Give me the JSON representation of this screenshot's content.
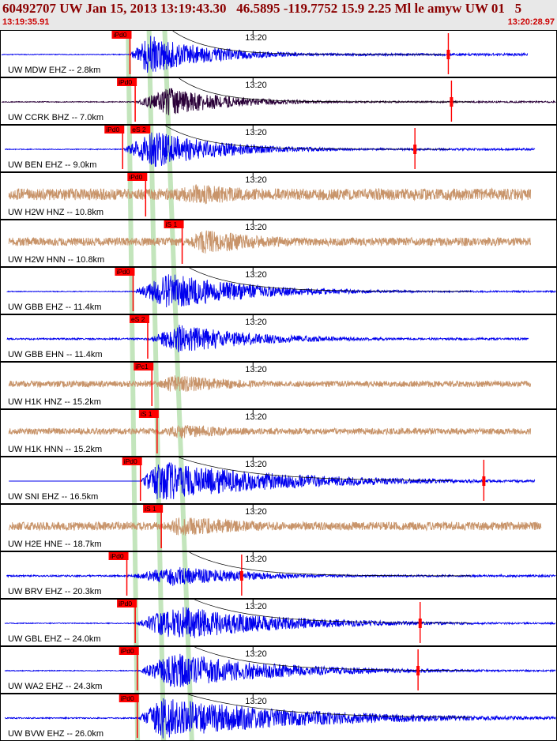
{
  "header": {
    "title": "60492707 UW Jan 15, 2013 13:19:43.30   46.5895 -119.7752 15.9 2.25 Ml le amyw UW 01   5",
    "start_time": "13:19:35.91",
    "end_time": "13:20:28.97"
  },
  "colors": {
    "velocity": "#0000ee",
    "strong_motion": "#c8946a",
    "broadband": "#2a0038",
    "pick": "#ff0000",
    "moveout": "#b8e0b0"
  },
  "chart_data": {
    "type": "line",
    "title": "60492707 UW Jan 15, 2013 13:19:43.30   46.5895 -119.7752 15.9 2.25 Ml le amyw UW 01   5",
    "x_range": [
      "13:19:35.91",
      "13:20:28.97"
    ],
    "time_mark": "13:20",
    "traces": [
      {
        "label": "UW MDW EHZ -- 2.8km",
        "type": "velocity",
        "pick_label": "iPd0",
        "pick_s": 12.3,
        "onset_s": 12.3,
        "peak_s": 14.0,
        "decay": 6,
        "amp": 1.0,
        "pre_amp": 0.02,
        "noise": 0.06,
        "start_s": 0,
        "end_s": 50.4,
        "spike_s": 42.8,
        "envelope": true,
        "env_pad_s": 2.4
      },
      {
        "label": "UW CCRK BHZ -- 7.0km",
        "type": "broadband",
        "pick_label": "iPd0",
        "pick_s": 12.8,
        "onset_s": 12.8,
        "peak_s": 16.0,
        "decay": 6,
        "amp": 0.7,
        "pre_amp": 0.02,
        "noise": 0.04,
        "start_s": 0,
        "end_s": 53.1,
        "spike_s": 43.1,
        "envelope": true,
        "env_pad_s": 1.0
      },
      {
        "label": "UW BEN EHZ -- 9.0km",
        "type": "velocity",
        "pick_label": "iPd0",
        "pick_s": 11.6,
        "onset_s": 11.6,
        "peak_s": 14.5,
        "decay": 7,
        "amp": 0.9,
        "pre_amp": 0.02,
        "noise": 0.05,
        "start_s": 0.3,
        "end_s": 51.1,
        "spike_s": 39.6,
        "envelope": true,
        "env_pad_s": 1.2,
        "extra_pick": "eS 2"
      },
      {
        "label": "UW H2W HNZ -- 10.8km",
        "type": "strong_motion",
        "pick_label": "iPd0",
        "pick_s": 13.8,
        "onset_s": 13.8,
        "peak_s": 19.0,
        "decay": 10,
        "amp": 0.5,
        "pre_amp": 0.28,
        "noise": 0.28,
        "start_s": 0.7,
        "end_s": 50.7,
        "spike_s": null,
        "envelope": false
      },
      {
        "label": "UW H2W HNN -- 10.8km",
        "type": "strong_motion",
        "pick_label": "iS 1",
        "pick_s": 17.3,
        "onset_s": 17.3,
        "peak_s": 19.5,
        "decay": 8,
        "amp": 0.6,
        "pre_amp": 0.2,
        "noise": 0.2,
        "start_s": 0.7,
        "end_s": 50.7,
        "spike_s": null,
        "envelope": false
      },
      {
        "label": "UW GBB EHZ -- 11.4km",
        "type": "velocity",
        "pick_label": "iPd0",
        "pick_s": 12.6,
        "onset_s": 12.6,
        "peak_s": 16.0,
        "decay": 8,
        "amp": 0.9,
        "pre_amp": 0.02,
        "noise": 0.04,
        "start_s": 0.5,
        "end_s": 53.1,
        "spike_s": null,
        "envelope": true,
        "env_pad_s": 2.0
      },
      {
        "label": "UW GBB EHN -- 11.4km",
        "type": "velocity",
        "pick_label": "eS 2",
        "pick_s": 14.0,
        "onset_s": 14.0,
        "peak_s": 17.0,
        "decay": 8,
        "amp": 0.7,
        "pre_amp": 0.04,
        "noise": 0.05,
        "start_s": 0.5,
        "end_s": 50.5,
        "spike_s": null,
        "envelope": false
      },
      {
        "label": "UW H1K HNZ -- 15.2km",
        "type": "strong_motion",
        "pick_label": "iPc1",
        "pick_s": 14.4,
        "onset_s": 14.4,
        "peak_s": 16.5,
        "decay": 8,
        "amp": 0.45,
        "pre_amp": 0.15,
        "noise": 0.15,
        "start_s": 0.7,
        "end_s": 50.7,
        "spike_s": null,
        "envelope": false
      },
      {
        "label": "UW H1K HNN -- 15.2km",
        "type": "strong_motion",
        "pick_label": "iS 1",
        "pick_s": 14.9,
        "onset_s": 14.9,
        "peak_s": 17.0,
        "decay": 8,
        "amp": 0.35,
        "pre_amp": 0.15,
        "noise": 0.15,
        "start_s": 0.7,
        "end_s": 50.7,
        "spike_s": null,
        "envelope": false
      },
      {
        "label": "UW SNI EHZ -- 16.5km",
        "type": "velocity",
        "pick_label": "iPd0",
        "pick_s": 13.3,
        "onset_s": 13.3,
        "peak_s": 15.0,
        "decay": 12,
        "amp": 1.0,
        "pre_amp": 0.0,
        "noise": 0.02,
        "start_s": 0.7,
        "end_s": 51.1,
        "spike_s": 46.2,
        "envelope": true,
        "env_pad_s": 2.0
      },
      {
        "label": "UW H2E HNE -- 18.7km",
        "type": "strong_motion",
        "pick_label": "iS 1",
        "pick_s": 15.3,
        "onset_s": 15.3,
        "peak_s": 17.0,
        "decay": 10,
        "amp": 0.5,
        "pre_amp": 0.2,
        "noise": 0.2,
        "start_s": 0.7,
        "end_s": 51.7,
        "spike_s": null,
        "envelope": false
      },
      {
        "label": "UW BRV EHZ -- 20.3km",
        "type": "velocity",
        "pick_label": "iPd0",
        "pick_s": 12.0,
        "onset_s": 12.0,
        "peak_s": 16.5,
        "decay": 8,
        "amp": 0.5,
        "pre_amp": 0.04,
        "noise": 0.05,
        "start_s": 0.5,
        "end_s": 53.1,
        "spike_s": 23.0,
        "envelope": true,
        "env_pad_s": 1.5
      },
      {
        "label": "UW GBL EHZ -- 24.0km",
        "type": "velocity",
        "pick_label": "iPd0",
        "pick_s": 12.8,
        "onset_s": 12.8,
        "peak_s": 16.5,
        "decay": 10,
        "amp": 0.9,
        "pre_amp": 0.02,
        "noise": 0.04,
        "start_s": 0.3,
        "end_s": 53.1,
        "spike_s": 40.1,
        "envelope": true,
        "env_pad_s": 2.0
      },
      {
        "label": "UW WA2 EHZ -- 24.3km",
        "type": "velocity",
        "pick_label": "iPd0",
        "pick_s": 13.0,
        "onset_s": 13.0,
        "peak_s": 16.5,
        "decay": 10,
        "amp": 0.9,
        "pre_amp": 0.02,
        "noise": 0.04,
        "start_s": 0.3,
        "end_s": 53.1,
        "spike_s": 39.9,
        "envelope": true,
        "env_pad_s": 2.0
      },
      {
        "label": "UW BVW EHZ -- 26.0km",
        "type": "velocity",
        "pick_label": "iPd0",
        "pick_s": 13.0,
        "onset_s": 13.0,
        "peak_s": 15.5,
        "decay": 14,
        "amp": 1.0,
        "pre_amp": 0.03,
        "noise": 0.06,
        "start_s": 0.3,
        "end_s": 53.1,
        "spike_s": null,
        "envelope": true,
        "env_pad_s": 2.4
      }
    ]
  }
}
